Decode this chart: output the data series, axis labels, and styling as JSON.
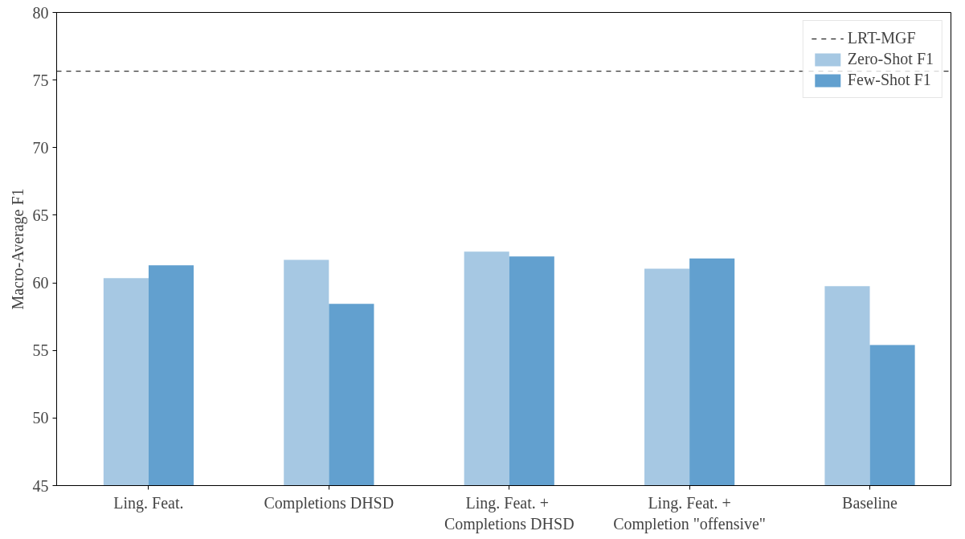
{
  "chart_data": {
    "type": "bar",
    "ylabel": "Macro-Average F1",
    "categories": [
      "Ling. Feat.",
      "Completions DHSD",
      "Ling.  Feat. +\nCompletions DHSD",
      "Ling. Feat. +\nCompletion \"offensive\"",
      "Baseline"
    ],
    "series": [
      {
        "name": "Zero-Shot F1",
        "color": "#a6c8e3",
        "values": [
          60.35,
          61.7,
          62.3,
          61.05,
          59.75
        ]
      },
      {
        "name": "Few-Shot F1",
        "color": "#62a0cf",
        "values": [
          61.3,
          58.45,
          61.95,
          61.8,
          55.4
        ]
      }
    ],
    "ylim": [
      45,
      80
    ],
    "yticks": [
      45,
      50,
      55,
      60,
      65,
      70,
      75,
      80
    ],
    "ref_lines": [
      {
        "axis": "y",
        "value": 75.65,
        "label": "LRT-MGF",
        "color": "#000000",
        "line_style": "dashed"
      }
    ],
    "grid": false,
    "legend": "top right"
  }
}
